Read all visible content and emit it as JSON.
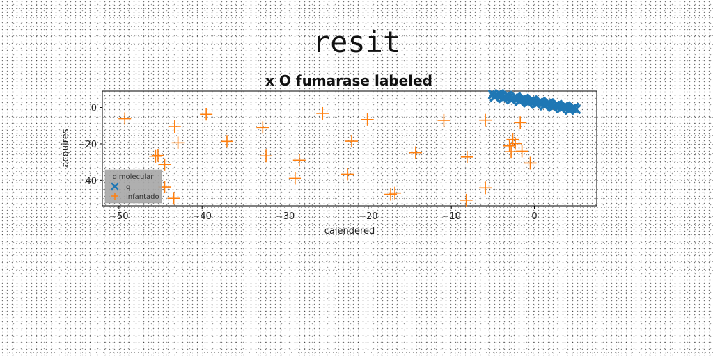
{
  "figure": {
    "suptitle": "resit"
  },
  "chart_data": {
    "type": "scatter",
    "title": "x O fumarase labeled",
    "xlabel": "calendered",
    "ylabel": "acquires",
    "xlim": [
      -52,
      7.5
    ],
    "ylim": [
      -54,
      9
    ],
    "xticks": [
      -50,
      -40,
      -30,
      -20,
      -10,
      0
    ],
    "yticks": [
      0,
      -20,
      -40
    ],
    "xtick_labels": [
      "−50",
      "−40",
      "−30",
      "−20",
      "−10",
      "0"
    ],
    "ytick_labels": [
      "0",
      "−20",
      "−40"
    ],
    "legend": {
      "title": "dimolecular",
      "position": "lower-left"
    },
    "series": [
      {
        "name": "q",
        "marker": "x",
        "color": "#1f77b4",
        "x": [
          -5.0,
          -4.5,
          -4.0,
          -3.5,
          -3.0,
          -2.5,
          -2.0,
          -1.5,
          -1.0,
          -0.5,
          0.0,
          0.5,
          1.0,
          1.5,
          2.0,
          2.5,
          3.0,
          3.5,
          4.0,
          4.5,
          5.0,
          -4.8,
          -3.8,
          -2.8,
          -1.8,
          -0.8,
          0.2,
          1.2,
          2.2,
          3.2,
          4.2,
          -4.2,
          -3.2,
          -2.2,
          -1.2,
          -0.2,
          0.8,
          1.8,
          2.8,
          3.8,
          4.8
        ],
        "y": [
          7.2,
          6.8,
          6.5,
          6.0,
          5.6,
          5.2,
          4.8,
          4.4,
          4.0,
          3.6,
          3.1,
          2.7,
          2.3,
          1.9,
          1.5,
          1.1,
          0.7,
          0.3,
          -0.1,
          -0.5,
          -1.0,
          5.8,
          5.0,
          4.2,
          3.4,
          2.6,
          1.8,
          1.0,
          0.2,
          -0.6,
          -1.4,
          7.5,
          6.6,
          5.8,
          5.0,
          4.1,
          3.3,
          2.5,
          1.6,
          0.8,
          0.0
        ]
      },
      {
        "name": "infantado",
        "marker": "+",
        "color": "#ff7f0e",
        "x": [
          -49.3,
          -43.3,
          -39.5,
          -42.9,
          -37.0,
          -32.7,
          -32.3,
          -28.3,
          -28.8,
          -25.5,
          -22.5,
          -22.0,
          -20.1,
          -17.3,
          -16.8,
          -14.3,
          -10.9,
          -8.1,
          -8.2,
          -5.9,
          -5.9,
          -3.0,
          -2.6,
          -2.3,
          -2.8,
          -1.7,
          -1.5,
          -0.5,
          -45.6,
          -45.3,
          -44.5,
          -44.5,
          -43.4
        ],
        "y": [
          -6.1,
          -10.5,
          -3.7,
          -19.4,
          -18.6,
          -11.0,
          -26.6,
          -28.9,
          -38.9,
          -3.2,
          -36.6,
          -18.5,
          -6.6,
          -47.7,
          -47.0,
          -24.8,
          -7.0,
          -27.2,
          -50.9,
          -6.9,
          -44.2,
          -21.1,
          -17.6,
          -19.8,
          -24.3,
          -8.3,
          -24.0,
          -30.5,
          -26.8,
          -26.4,
          -31.4,
          -43.7,
          -49.9
        ]
      }
    ]
  }
}
